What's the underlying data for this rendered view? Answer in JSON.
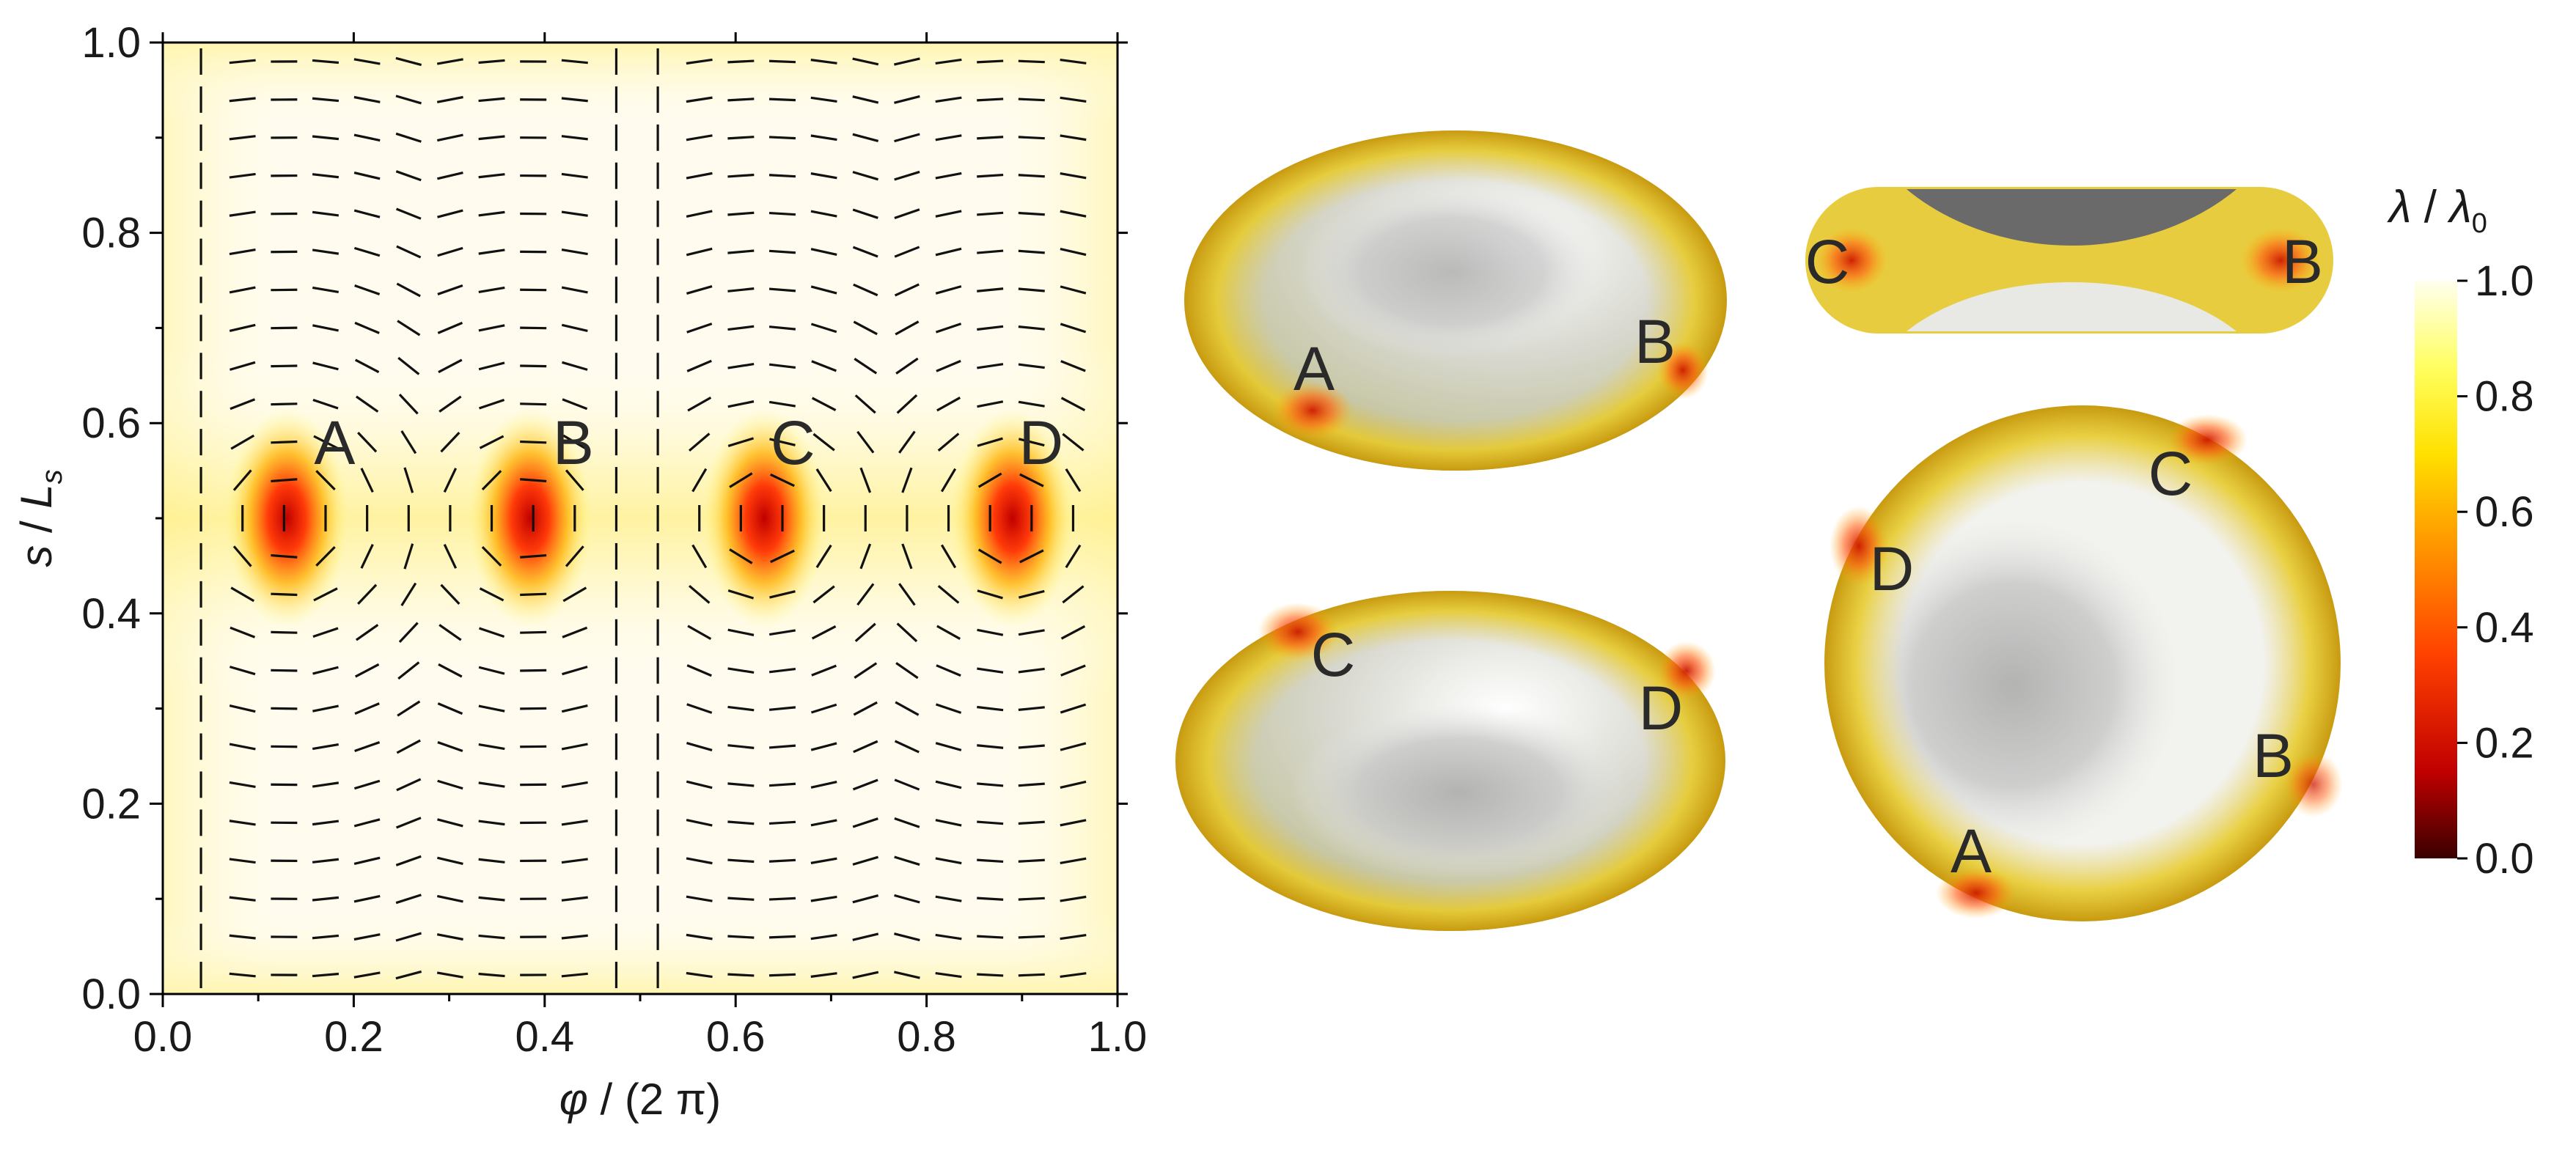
{
  "chart_data": [
    {
      "type": "heatmap",
      "xlabel_symbol": "φ",
      "xlabel_rest": " / (2 π)",
      "ylabel_symbol": "s",
      "ylabel_sep": " / ",
      "ylabel_L": "L",
      "ylabel_sub": "s",
      "xlim": [
        0.0,
        1.0
      ],
      "ylim": [
        0.0,
        1.0
      ],
      "x_ticks": [
        "0.0",
        "0.2",
        "0.4",
        "0.6",
        "0.8",
        "1.0"
      ],
      "y_ticks": [
        "0.0",
        "0.2",
        "0.4",
        "0.6",
        "0.8",
        "1.0"
      ],
      "defect_points": [
        {
          "label": "A",
          "x": 0.13,
          "y": 0.5,
          "label_x": 0.18,
          "label_y": 0.58
        },
        {
          "label": "B",
          "x": 0.385,
          "y": 0.5,
          "label_x": 0.43,
          "label_y": 0.58
        },
        {
          "label": "C",
          "x": 0.63,
          "y": 0.5,
          "label_x": 0.66,
          "label_y": 0.58
        },
        {
          "label": "D",
          "x": 0.89,
          "y": 0.5,
          "label_x": 0.92,
          "label_y": 0.58
        }
      ],
      "background_value": 1.0,
      "edge_value": 0.85,
      "defect_min_value": 0.25
    }
  ],
  "shape_views": {
    "top_left": {
      "labels": [
        "A",
        "B"
      ]
    },
    "bottom_left": {
      "labels": [
        "C",
        "D"
      ]
    },
    "top_right": {
      "labels": [
        "C",
        "B"
      ]
    },
    "bottom_right": {
      "labels": [
        "C",
        "D",
        "B",
        "A"
      ]
    }
  },
  "colorbar": {
    "title_symbol": "λ",
    "title_sep": " / ",
    "title_symbol2": "λ",
    "title_sub": "0",
    "ticks": [
      "1.0",
      "0.8",
      "0.6",
      "0.4",
      "0.2",
      "0.0"
    ],
    "range": [
      0.0,
      1.0
    ],
    "colors": [
      "#3a0000",
      "#c00000",
      "#ff4000",
      "#ff9a00",
      "#ffe000",
      "#ffff60",
      "#ffffe8"
    ]
  }
}
